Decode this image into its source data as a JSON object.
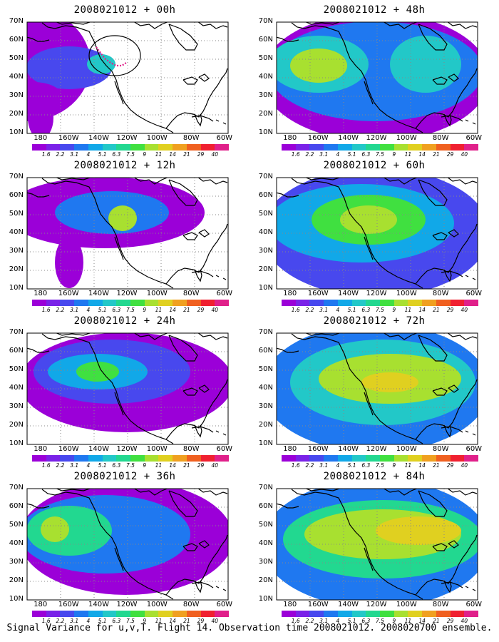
{
  "panels": [
    {
      "title": "2008021012 + 00h"
    },
    {
      "title": "2008021012 + 48h"
    },
    {
      "title": "2008021012 + 12h"
    },
    {
      "title": "2008021012 + 60h"
    },
    {
      "title": "2008021012 + 24h"
    },
    {
      "title": "2008021012 + 72h"
    },
    {
      "title": "2008021012 + 36h"
    },
    {
      "title": "2008021012 + 84h"
    }
  ],
  "axes": {
    "y_ticks": [
      "70N",
      "60N",
      "50N",
      "40N",
      "30N",
      "20N",
      "10N"
    ],
    "x_ticks": [
      "180",
      "160W",
      "140W",
      "120W",
      "100W",
      "80W",
      "60W"
    ]
  },
  "colorbar": {
    "labels": [
      "1.6",
      "2.2",
      "3.1",
      "4",
      "5.1",
      "6.3",
      "7.5",
      "9",
      "11",
      "14",
      "21",
      "29",
      "40"
    ],
    "colors": [
      "#9b00d8",
      "#7a22e8",
      "#4848ee",
      "#1f78f0",
      "#11a8e8",
      "#22c8c8",
      "#22d890",
      "#40e040",
      "#a8e030",
      "#e0d020",
      "#f0a020",
      "#f06020",
      "#f02030",
      "#e0208a"
    ]
  },
  "footer": "Signal Variance for u,v,T. Flight 14. Observation time 2008021012. 2008020700 ensemble."
}
